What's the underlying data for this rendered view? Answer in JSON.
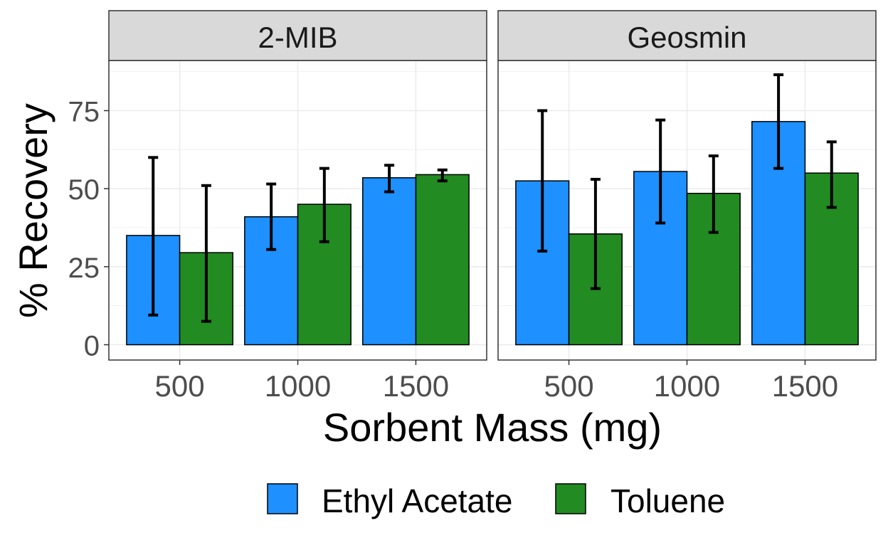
{
  "chart_data": {
    "type": "bar",
    "facets": [
      "2-MIB",
      "Geosmin"
    ],
    "categories": [
      "500",
      "1000",
      "1500"
    ],
    "xlabel": "Sorbent Mass (mg)",
    "ylabel": "% Recovery",
    "ylim": [
      -5,
      91
    ],
    "yticks": [
      0,
      25,
      50,
      75
    ],
    "grid": true,
    "legend_position": "bottom",
    "series": [
      {
        "name": "Ethyl Acetate",
        "color": "#1E90FF",
        "values": {
          "2-MIB": [
            35,
            41,
            53.5
          ],
          "Geosmin": [
            52.5,
            55.5,
            71.5
          ]
        },
        "error": {
          "2-MIB": [
            [
              9.5,
              60
            ],
            [
              30.5,
              51.5
            ],
            [
              49,
              57.5
            ]
          ],
          "Geosmin": [
            [
              30,
              75
            ],
            [
              39,
              72
            ],
            [
              56.5,
              86.5
            ]
          ]
        }
      },
      {
        "name": "Toluene",
        "color": "#228B22",
        "values": {
          "2-MIB": [
            29.5,
            45,
            54.5
          ],
          "Geosmin": [
            35.5,
            48.5,
            55
          ]
        },
        "error": {
          "2-MIB": [
            [
              7.5,
              51
            ],
            [
              33,
              56.5
            ],
            [
              52.5,
              56
            ]
          ],
          "Geosmin": [
            [
              18,
              53
            ],
            [
              36,
              60.5
            ],
            [
              44,
              65
            ]
          ]
        }
      }
    ]
  }
}
